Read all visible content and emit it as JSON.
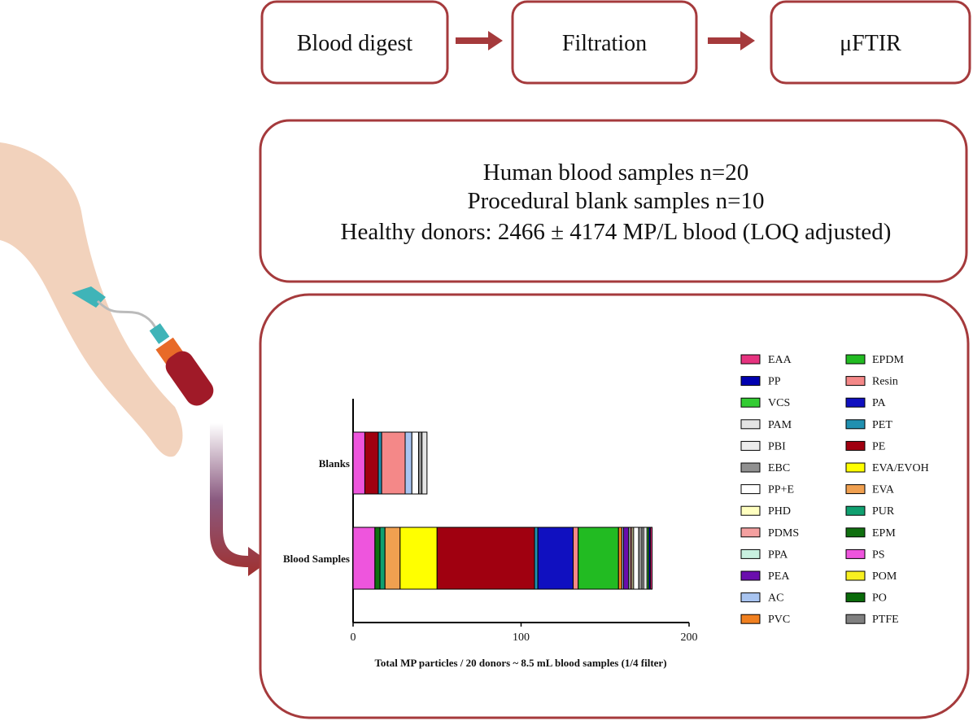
{
  "flow": [
    "Blood digest",
    "Filtration",
    "μFTIR"
  ],
  "summary": [
    "Human blood samples n=20",
    "Procedural blank samples n=10",
    "Healthy donors: 2466 ± 4174 MP/L blood (LOQ adjusted)"
  ],
  "chart_data": {
    "type": "bar",
    "orientation": "horizontal",
    "stacked": true,
    "xlabel": "Total MP particles / 20 donors ~ 8.5 mL blood samples (1/4 filter)",
    "categories": [
      "Blanks",
      "Blood Samples"
    ],
    "xlim": [
      0,
      200
    ],
    "xticks": [
      0,
      100,
      200
    ],
    "series": [
      {
        "name": "EAA",
        "color": "#e6337f",
        "values": [
          0,
          1
        ]
      },
      {
        "name": "PP",
        "color": "#0000b0",
        "values": [
          0,
          1
        ]
      },
      {
        "name": "VCS",
        "color": "#33cc33",
        "values": [
          0,
          1
        ]
      },
      {
        "name": "PAM",
        "color": "#e4e4e4",
        "values": [
          3,
          2
        ]
      },
      {
        "name": "PBI",
        "color": "#ececec",
        "values": [
          0,
          1
        ]
      },
      {
        "name": "EBC",
        "color": "#909090",
        "values": [
          2,
          2
        ]
      },
      {
        "name": "PP+E",
        "color": "#ffffff",
        "values": [
          4,
          3
        ]
      },
      {
        "name": "PHD",
        "color": "#ffffc0",
        "values": [
          0,
          1
        ]
      },
      {
        "name": "PDMS",
        "color": "#f4a0a0",
        "values": [
          0,
          1
        ]
      },
      {
        "name": "PPA",
        "color": "#c8f0e0",
        "values": [
          0,
          1
        ]
      },
      {
        "name": "PEA",
        "color": "#6a0dad",
        "values": [
          0,
          3
        ]
      },
      {
        "name": "AC",
        "color": "#a8c4f0",
        "values": [
          4,
          1
        ]
      },
      {
        "name": "PVC",
        "color": "#f08020",
        "values": [
          0,
          2
        ]
      },
      {
        "name": "EPDM",
        "color": "#22bb22",
        "values": [
          0,
          24
        ]
      },
      {
        "name": "Resin",
        "color": "#f48888",
        "values": [
          14,
          3
        ]
      },
      {
        "name": "PA",
        "color": "#1010c0",
        "values": [
          0,
          21
        ]
      },
      {
        "name": "PET",
        "color": "#2090b0",
        "values": [
          2,
          2
        ]
      },
      {
        "name": "PE",
        "color": "#a00010",
        "values": [
          8,
          58
        ]
      },
      {
        "name": "EVA/EVOH",
        "color": "#ffff00",
        "values": [
          0,
          22
        ]
      },
      {
        "name": "EVA",
        "color": "#f0a050",
        "values": [
          0,
          9
        ]
      },
      {
        "name": "PUR",
        "color": "#10a070",
        "values": [
          0,
          3
        ]
      },
      {
        "name": "EPM",
        "color": "#107010",
        "values": [
          0,
          3
        ]
      },
      {
        "name": "PS",
        "color": "#ee55dd",
        "values": [
          7,
          13
        ]
      },
      {
        "name": "POM",
        "color": "#f8f020",
        "values": [
          0,
          0
        ]
      },
      {
        "name": "PO",
        "color": "#0a6a0a",
        "values": [
          0,
          0
        ]
      },
      {
        "name": "PTFE",
        "color": "#808080",
        "values": [
          0,
          0
        ]
      }
    ]
  }
}
